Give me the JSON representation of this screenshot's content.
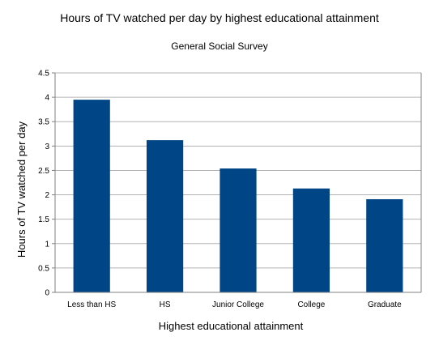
{
  "chart_data": {
    "type": "bar",
    "title": "Hours of TV watched per day by highest educational attainment",
    "subtitle": "General Social Survey",
    "xlabel": "Highest educational attainment",
    "ylabel": "Hours of TV watched per day",
    "categories": [
      "Less than HS",
      "HS",
      "Junior College",
      "College",
      "Graduate"
    ],
    "values": [
      3.95,
      3.12,
      2.54,
      2.13,
      1.91
    ],
    "ylim": [
      0,
      4.5
    ],
    "yticks": [
      "0",
      "0.5",
      "1",
      "1.5",
      "2",
      "2.5",
      "3",
      "3.5",
      "4",
      "4.5"
    ],
    "grid": true,
    "legend": "none",
    "colors": {
      "bar": "#004586",
      "grid": "#b3b3b3",
      "axis": "#808080"
    }
  }
}
